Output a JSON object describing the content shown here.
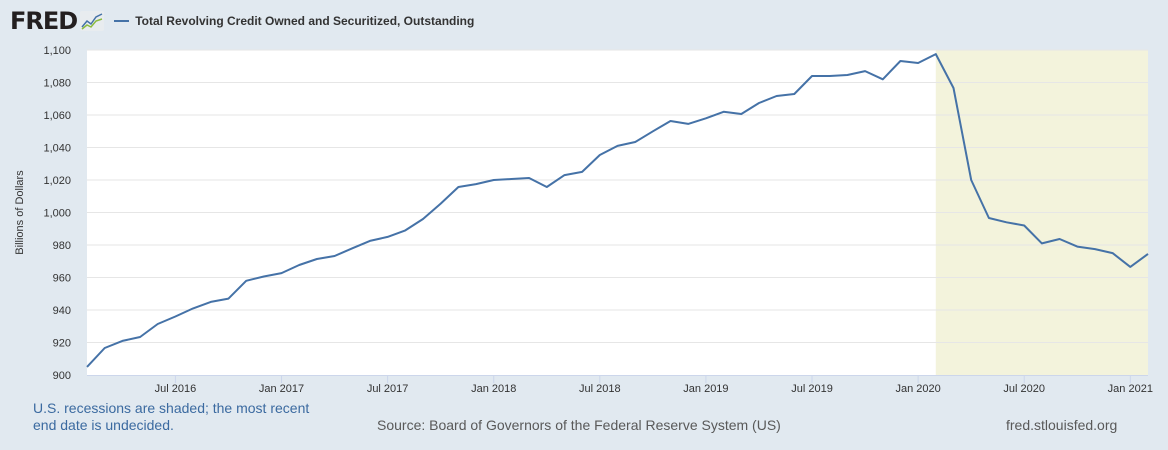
{
  "header": {
    "logo": "FRED",
    "logo_icon": "line-graph-icon",
    "legend_label": "Total Revolving Credit Owned and Securitized, Outstanding"
  },
  "footer": {
    "recession_note": "U.S. recessions are shaded; the most recent end date is undecided.",
    "source": "Source: Board of Governors of the Federal Reserve System (US)",
    "site": "fred.stlouisfed.org"
  },
  "colors": {
    "background": "#e1e9f0",
    "plot_bg": "#ffffff",
    "line": "#4572a7",
    "recession": "#f3f3dc",
    "grid": "#e6e6e6"
  },
  "chart_data": {
    "type": "line",
    "title": "Total Revolving Credit Owned and Securitized, Outstanding",
    "xlabel": "",
    "ylabel": "Billions of Dollars",
    "ylim": [
      900,
      1100
    ],
    "yticks": [
      900,
      920,
      940,
      960,
      980,
      1000,
      1020,
      1040,
      1060,
      1080,
      1100
    ],
    "ytick_labels": [
      "900",
      "920",
      "940",
      "960",
      "980",
      "1,000",
      "1,020",
      "1,040",
      "1,060",
      "1,080",
      "1,100"
    ],
    "x_start": "2016-02",
    "x_end": "2021-02",
    "frequency": "monthly",
    "xticks": [
      {
        "label": "Jul 2016",
        "month_index": 5
      },
      {
        "label": "Jan 2017",
        "month_index": 11
      },
      {
        "label": "Jul 2017",
        "month_index": 17
      },
      {
        "label": "Jan 2018",
        "month_index": 23
      },
      {
        "label": "Jul 2018",
        "month_index": 29
      },
      {
        "label": "Jan 2019",
        "month_index": 35
      },
      {
        "label": "Jul 2019",
        "month_index": 41
      },
      {
        "label": "Jan 2020",
        "month_index": 47
      },
      {
        "label": "Jul 2020",
        "month_index": 53
      },
      {
        "label": "Jan 2021",
        "month_index": 59
      }
    ],
    "recession": {
      "start_month_index": 48,
      "end_month_index": 60,
      "start": "2020-02",
      "end": "undecided"
    },
    "grid": true,
    "legend": "top-left",
    "series": [
      {
        "name": "Total Revolving Credit Owned and Securitized, Outstanding",
        "values": [
          905,
          916.6,
          921,
          923.4,
          931.4,
          936,
          941,
          945,
          947,
          958,
          960.6,
          962.7,
          967.7,
          971.4,
          973.2,
          978,
          982.5,
          985,
          989,
          996,
          1005.5,
          1015.7,
          1017.5,
          1020,
          1020.6,
          1021.2,
          1015.7,
          1023,
          1025,
          1035.4,
          1041,
          1043.4,
          1050,
          1056.3,
          1054.5,
          1058,
          1062,
          1060.6,
          1067.4,
          1071.7,
          1072.9,
          1084,
          1084,
          1084.6,
          1087,
          1082,
          1093.2,
          1092,
          1097.5,
          1076.6,
          1020,
          996.6,
          994,
          992,
          981,
          983.7,
          979,
          977.5,
          975,
          966.5,
          974.5
        ]
      }
    ]
  }
}
